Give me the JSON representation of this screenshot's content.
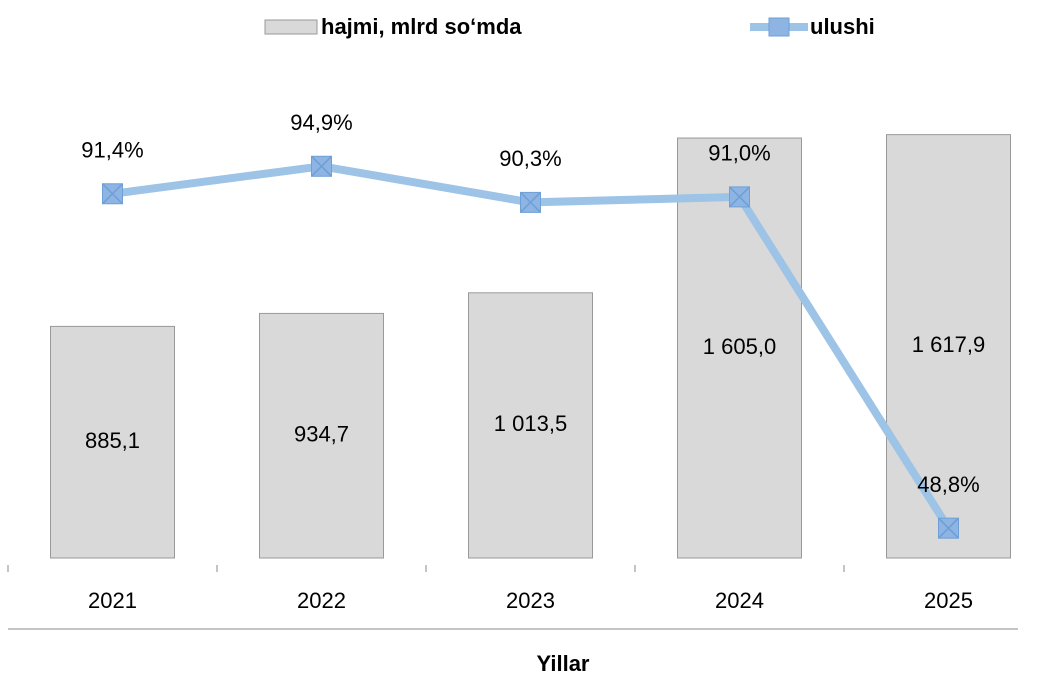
{
  "chart_data": {
    "type": "bar_line",
    "x_label": "Yillar",
    "categories": [
      "2021",
      "2022",
      "2023",
      "2024",
      "2025"
    ],
    "series": [
      {
        "name": "hajmi, mlrd so‘mda",
        "type": "bar",
        "color": "#d9d9d9",
        "axis": "y",
        "values": [
          885.1,
          934.7,
          1013.5,
          1605.0,
          1617.9
        ],
        "value_labels": [
          "885,1",
          "934,7",
          "1 013,5",
          "1 605,0",
          "1 617,9"
        ]
      },
      {
        "name": "ulushi",
        "type": "line",
        "color": "#9dc3e6",
        "axis": "y2",
        "values": [
          91.4,
          94.9,
          90.3,
          91.0,
          48.8
        ],
        "value_labels": [
          "91,4%",
          "94,9%",
          "90,3%",
          "91,0%",
          "48,8%"
        ]
      }
    ],
    "ylim": [
      0,
      1800
    ],
    "y2lim": [
      45,
      105
    ],
    "legend": "top"
  }
}
